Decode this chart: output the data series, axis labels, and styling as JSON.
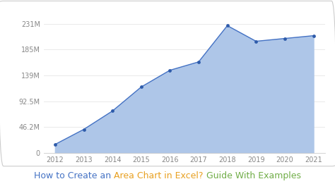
{
  "years": [
    2012,
    2013,
    2014,
    2015,
    2016,
    2017,
    2018,
    2019,
    2020,
    2021
  ],
  "values": [
    15000000,
    42000000,
    75000000,
    118000000,
    148000000,
    163000000,
    228000000,
    200000000,
    205000000,
    210000000
  ],
  "line_color": "#4472c4",
  "area_color": "#aec6e8",
  "marker_color": "#2e5baa",
  "yticks": [
    0,
    46200000,
    92500000,
    139000000,
    185000000,
    231000000
  ],
  "ytick_labels": [
    "0",
    "46.2M",
    "92.5M",
    "139M",
    "185M",
    "231M"
  ],
  "xlim": [
    2011.6,
    2021.4
  ],
  "ylim": [
    0,
    250000000
  ],
  "bg_color": "#ffffff",
  "border_color": "#cccccc",
  "title_parts": [
    {
      "text": "How to Create an ",
      "color": "#4472c4"
    },
    {
      "text": "Area Chart in Excel?",
      "color": "#e8a020"
    },
    {
      "text": " ",
      "color": "#4472c4"
    },
    {
      "text": "Guide With Examples",
      "color": "#70ad47"
    }
  ],
  "title_fontsize": 9.0,
  "tick_fontsize": 7.0,
  "tick_color": "#888888"
}
